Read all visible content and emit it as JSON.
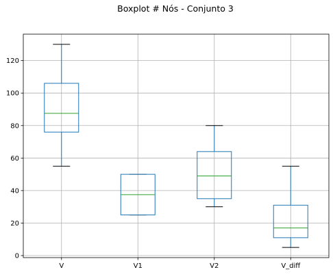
{
  "chart_data": {
    "type": "boxplot",
    "title": "Boxplot # Nós - Conjunto 3",
    "xlabel": "",
    "ylabel": "",
    "categories": [
      "V",
      "V1",
      "V2",
      "V_diff"
    ],
    "boxes": [
      {
        "name": "V",
        "whisker_low": 55,
        "q1": 76,
        "median": 87.5,
        "q3": 106,
        "whisker_high": 130
      },
      {
        "name": "V1",
        "whisker_low": 25,
        "q1": 25,
        "median": 37.5,
        "q3": 50,
        "whisker_high": 50
      },
      {
        "name": "V2",
        "whisker_low": 30,
        "q1": 35,
        "median": 49,
        "q3": 64,
        "whisker_high": 80
      },
      {
        "name": "V_diff",
        "whisker_low": 5,
        "q1": 11,
        "median": 17,
        "q3": 31,
        "whisker_high": 55
      }
    ],
    "y_ticks": [
      0,
      20,
      40,
      60,
      80,
      100,
      120
    ],
    "ylim": [
      -1.25,
      136.25
    ],
    "grid": true,
    "colors": {
      "box": "#1f77b4",
      "median": "#2ca02c",
      "whisker": "#1f77b4",
      "cap": "#000000",
      "grid": "#b0b0b0",
      "axes": "#000000"
    }
  }
}
